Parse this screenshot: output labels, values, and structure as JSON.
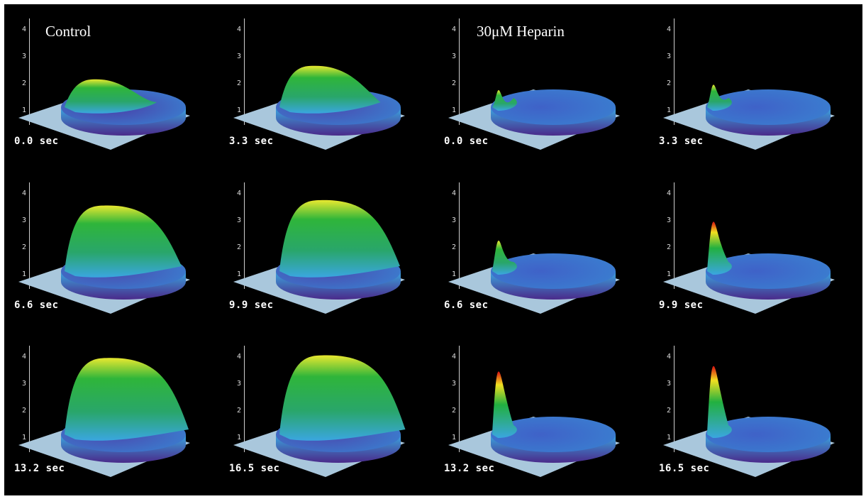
{
  "labels": {
    "control": "Control",
    "heparin": "30μM Heparin"
  },
  "y_ticks": [
    "4",
    "3",
    "2",
    "1"
  ],
  "panels": [
    {
      "group": "control",
      "time": "0.0 sec",
      "peak": 1.9,
      "spike": 0.0,
      "color": "#4a3ea8"
    },
    {
      "group": "control",
      "time": "3.3 sec",
      "peak": 2.4,
      "spike": 0.0,
      "color": "#4a4bb0"
    },
    {
      "group": "heparin",
      "time": "0.0 sec",
      "peak": 1.5,
      "spike": 0.0,
      "color": "#3f62c8"
    },
    {
      "group": "heparin",
      "time": "3.3 sec",
      "peak": 1.7,
      "spike": 0.0,
      "color": "#3f62c8"
    },
    {
      "group": "control",
      "time": "6.6 sec",
      "peak": 3.3,
      "spike": 0.0,
      "color": "#4a4bb0"
    },
    {
      "group": "control",
      "time": "9.9 sec",
      "peak": 3.5,
      "spike": 0.0,
      "color": "#4a4bb0"
    },
    {
      "group": "heparin",
      "time": "6.6 sec",
      "peak": 2.0,
      "spike": 0.0,
      "color": "#3f62c8"
    },
    {
      "group": "heparin",
      "time": "9.9 sec",
      "peak": 2.7,
      "spike": 1.0,
      "color": "#3f62c8"
    },
    {
      "group": "control",
      "time": "13.2 sec",
      "peak": 3.7,
      "spike": 0.0,
      "color": "#4a4bb0"
    },
    {
      "group": "control",
      "time": "16.5 sec",
      "peak": 3.8,
      "spike": 0.0,
      "color": "#4a4bb0"
    },
    {
      "group": "heparin",
      "time": "13.2 sec",
      "peak": 3.2,
      "spike": 1.0,
      "color": "#3f62c8"
    },
    {
      "group": "heparin",
      "time": "16.5 sec",
      "peak": 3.4,
      "spike": 1.0,
      "color": "#3f62c8"
    }
  ]
}
